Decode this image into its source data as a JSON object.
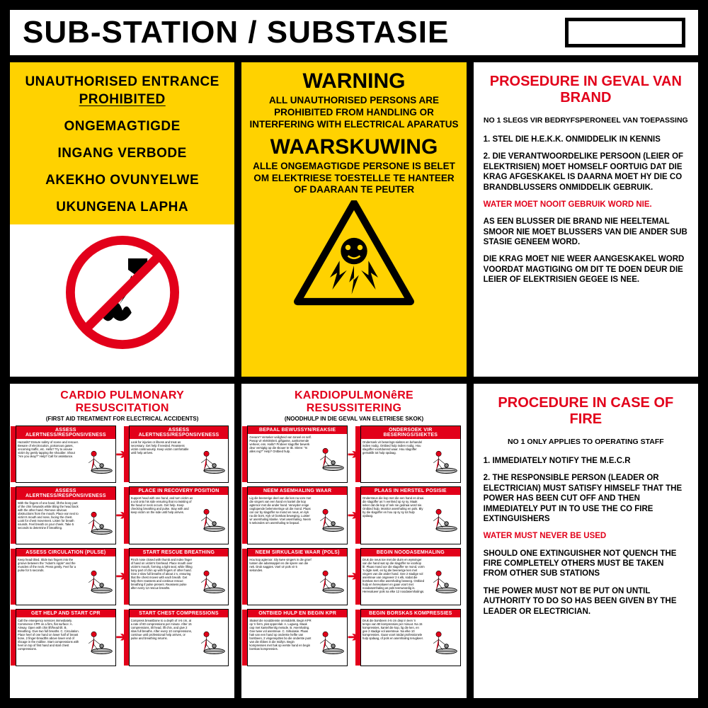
{
  "colors": {
    "black": "#000000",
    "white": "#ffffff",
    "yellow": "#ffd200",
    "red": "#e2001a"
  },
  "header": {
    "title": "SUB-STATION / SUBSTASIE"
  },
  "top_left": {
    "lines": [
      "UNAUTHORISED ENTRANCE",
      "PROHIBITED",
      "ONGEMAGTIGDE",
      "INGANG VERBODE",
      "AKEKHO OVUNYELWE",
      "UKUNGENA LAPHA"
    ]
  },
  "top_middle": {
    "warn_en_title": "WARNING",
    "warn_en_body": "ALL UNAUTHORISED PERSONS ARE PROHIBITED FROM HANDLING OR INTERFERING WITH ELECTRICAL  APARATUS",
    "warn_af_title": "WAARSKUWING",
    "warn_af_body": "ALLE ONGEMAGTIGDE PERSONE IS BELET OM ELEKTRIESE TOESTELLE TE HANTEER OF DAARAAN TE PEUTER"
  },
  "fire_af": {
    "title": "PROSEDURE IN GEVAL VAN BRAND",
    "sub": "NO 1 SLEGS VIR BEDRYFSPERONEEL VAN TOEPASSING",
    "p1": "1. STEL DIE H.E.K.K. ONMIDDELIK IN KENNIS",
    "p2": "2. DIE VERANTWOORDELIKE PERSOON (LEIER OF ELEKTRISIEN) MOET HOMSELF OORTUIG DAT DIE KRAG AFGESKAKEL IS DAARNA MOET HY DIE CO BRANDBLUSSERS ONMIDDELIK GEBRUIK.",
    "p3_red": "WATER MOET NOOIT GEBRUIK WORD NIE.",
    "p4": "AS EEN BLUSSER DIE BRAND NIE HEELTEMAL SMOOR NIE MOET BLUSSERS VAN DIE ANDER SUB STASIE GENEEM WORD.",
    "p5": "DIE KRAG MOET NIE WEER AANGESKAKEL WORD VOORDAT MAGTIGING OM DIT TE DOEN DEUR DIE LEIER OF ELEKTRISIEN GEGEE IS NEE."
  },
  "fire_en": {
    "title": "PROCEDURE IN CASE OF FIRE",
    "sub": "NO 1 ONLY APPLIES TO OPERATING STAFF",
    "p1": "1. IMMEDIATELY NOTIFY THE M.E.C.R",
    "p2": "2. THE RESPONSIBLE PERSON (LEADER OR ELECTRICIAN) MUST SATISFY HIMSELF THAT THE POWER HAS BEEN CUT OFF AND THEN IMMEDIATELY PUT IN TO USE THE CO FIRE EXTINGUISHERS",
    "p3_red": "WATER MUST NEVER BE USED",
    "p4": "SHOULD ONE EXTINGUISHER NOT QUENCH THE FIRE COMPLETELY OTHERS MUST BE TAKEN FROM OTHER SUB STATIONS",
    "p5": "THE POWER MUST NOT BE PUT ON UNTIL AUTHORITY TO DO SO HAS BEEN GIVEN BY THE LEADER OR ELECTRICIAN."
  },
  "cpr_en": {
    "title": "CARDIO PULMONARY RESUSCITATION",
    "sub": "(FIRST AID TREATMENT FOR ELECTRICAL ACCIDENTS)",
    "steps": [
      {
        "hdr": "ASSESS ALERTNESS/RESPONSIVENESS",
        "txt": "Hazards? Ensure safety of scene and rescuer. Beware of electrocution, poisonous gases, oncoming traffic, etc. Hello? Try to arouse victim by gently tapping the shoulder. Shout \"Are you okay?\" Help? Call for assistance."
      },
      {
        "hdr": "ASSESS ALERTNESS/RESPONSIVENESS",
        "txt": "Look for injuries or illness and treat as necessary. Get help if needed. Reassess victim continuously. Keep victim comfortable until help arrives."
      },
      {
        "hdr": "ASSESS ALERTNESS/RESPONSIVENESS",
        "txt": "With the fingers of one hand, lift the bony part of the chin forwards while tilting the head back with the other hand. Remove obvious obstructions from the mouth. Place ear next to victim's mouth and nose, facing the chest. Look for chest movement. Listen for breath sounds. Feel breath on your cheek. Take 5 seconds to determine if breathing."
      },
      {
        "hdr": "PLACE IN RECOVERY POSITION",
        "txt": "Support head with one hand, and turn victim as a unit onto his side ensuring that no twisting of the head or neck occurs. Get help. Keep checking breathing and pulse. Stay with and keep victim on the side until help arrives."
      },
      {
        "hdr": "ASSESS CIRCULATION (PULSE)",
        "txt": "Keep head tilted. Slide two fingers into the groove between the \"Adam's Apple\" and the muscles of the neck. Press gently. Feel for a pulse for 5 seconds."
      },
      {
        "hdr": "START RESCUE BREATHING",
        "txt": "Pinch nose closed with thumb and index finger of hand on victim's forehead. Place mouth over victim's mouth, forming a tight seal, while lifting bony part of chin up with fingers of other hand. Give 2 slow full breaths of about 2 s, ensuring that the chest moves with each breath. Get help then reassess and continue rescue breathing if pulse present. Reassess pulse after every 12 rescue breaths."
      },
      {
        "hdr": "GET HELP AND START CPR",
        "txt": "Call the emergency services immediately. Commence CPR on a firm, flat surface: A. Airway. Open with chin lift/head tilt. B. Breathing. Give two full breaths. C. Circulation. Place heel of one hand on lower half of breast bone, 2 finger-breadths above lower end of ribcage in the midline. Start compressions with heel on top of first hand and start chest compressions."
      },
      {
        "hdr": "START CHEST COMPRESSIONS",
        "txt": "Compress breastbone to a depth of 4-5 cm, at a rate of 80 compressions per minute. After 15 compressions, tilt head, lift chin, and give 2 slow full breaths. After every 10 compressions, continue until professional help arrives, or pulse and breathing returns."
      }
    ]
  },
  "cpr_af": {
    "title": "KARDIOPULMONêRE RESUSSITERING",
    "sub": "(NOODHULP IN DIE GEVAL VAN ELETRIESE SKOK)",
    "steps": [
      {
        "hdr": "BEPAAL BEWUSSYN/REAKSIE",
        "txt": "Gevare? Verseker veiligheid van toneel en self. Pasop vir elektrisiteit, giftgasse, aankomende verkeer, ens. Hallo? Probeer slagoffer bewerk deur versigtig op die skouer te tik. Skree: \"Is alles reg?\" Help? Ontbied hulp."
      },
      {
        "hdr": "ONDERSOEK VIR BESERINGS/SIEKTES",
        "txt": "Ondersoek vir beserings-siektes en behandel indien nodig. Ontbied hulp indien nodig. Hou slagoffer voortdurend waar. Hou slagoffer gemaklik tot hulp opdaag."
      },
      {
        "hdr": "NEEM ASEMHALING WAAR",
        "txt": "Lig die beenerige deel van die ken na vore met die vingers van een hand en kantel die kop agteroor met die ander hand. Verwyder enige ooglopende belemmeringe uit die mond. Plaas oor oor by slagoffer se mond en neus, en kyk na die bors. Kyk vir borskas beweging. Luister vir asemhaling klanke. Voel asemhaling. Neem 5 sekondes om asemhaling te bepaal."
      },
      {
        "hdr": "PLAAS IN HERSTEL POSISIE",
        "txt": "Ondersteun die kop met die een hand en draai die slagoffer as 'n eenheid op sy sy. Maak seker dat die kop of nek nie gedraai word nie. Ontbied hulp. Monitor asemhaling en pols. Bly by die slagoffer en hou op sy sy tot hulp opdaag."
      },
      {
        "hdr": "NEEM SIRKULASIE WAAR (POLS)",
        "txt": "Hou kop agteroor. Gly twee vingers in die groef tussen die adamsappel en die spiere van die nek. Druk saggies. Voel vir pols vir 5 sekondes."
      },
      {
        "hdr": "BEGIN NOODASEMHALING",
        "txt": "Druk die neus toe met die duim en wysvinger van die hand wat op die slagoffer se voorkop lê. Plaas mond oor die slagoffer se mond, vorm 'n digte seël, en lig die beenerige ken met vingers van die ander hand. Gee 2 stadige vol asemteue van ongeveer 2 s elk, sodat die borskas met elke asemhaling beweeg. Ontbied hulp en herevalueer en gaan voort met noodasemhaling as pols teenwoordig is. Herevalueer pols na elke 12 noodasemhalings."
      },
      {
        "hdr": "ONTBIED HULP EN BEGIN KPR",
        "txt": "Skakel die nooddienste onmiddelik. Begin KPR op 'n ferm, plat oppervlak: A. Lugweg. Maak oop met kantel/kenlig metode. B. Asemhaling. Gee twee vol asemteue. C. Sirkulasie. Plaas hak van een hand op onderste helfte van borsbeen, 2 vingerwydtes bo die onderste punt van die ribbes in die midlyn. Begin kompressies met hak op eerste hand en begin borskas kompressies."
      },
      {
        "hdr": "BEGIN BORSKAS KOMPRESSIES",
        "txt": "Druk die borsbeen 4-5 cm diep in teen 'n tempo van 80 kompressies per minuut. Na 15 kompressies, kantel die kop, lig die ken, en gee 2 stadige vol asemteue. Na elke 10 kompressies. Gaan voort totdat professionele hulp opdaag, of pols en asemhaling terugkeer."
      }
    ]
  }
}
